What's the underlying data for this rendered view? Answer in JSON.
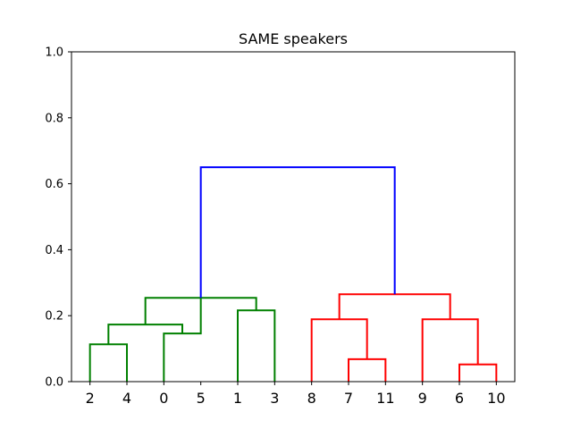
{
  "chart_data": {
    "type": "dendrogram",
    "title": "SAME speakers",
    "xlabel": "",
    "ylabel": "",
    "ylim": [
      0,
      1.0
    ],
    "yticks": [
      "0.0",
      "0.2",
      "0.4",
      "0.6",
      "0.8",
      "1.0"
    ],
    "grid": false,
    "leaves": [
      "2",
      "4",
      "0",
      "5",
      "1",
      "3",
      "8",
      "7",
      "11",
      "9",
      "6",
      "10"
    ],
    "colors": {
      "green": "#008000",
      "red": "#ff0000",
      "blue": "#0000ff"
    },
    "links": [
      {
        "left": 0,
        "right": 1,
        "height": 0.113,
        "color": "green"
      },
      {
        "left": 2,
        "right": 3,
        "height": 0.146,
        "color": "green"
      },
      {
        "left": 4,
        "right": 5,
        "height": 0.216,
        "color": "green"
      },
      {
        "left": 0.5,
        "right": 2.5,
        "height": 0.173,
        "color": "green"
      },
      {
        "left": 1.5,
        "right": 4.5,
        "height": 0.254,
        "color": "green"
      },
      {
        "left": 7,
        "right": 8,
        "height": 0.068,
        "color": "red"
      },
      {
        "left": 10,
        "right": 11,
        "height": 0.052,
        "color": "red"
      },
      {
        "left": 6,
        "right": 7.5,
        "height": 0.189,
        "color": "red"
      },
      {
        "left": 9,
        "right": 10.5,
        "height": 0.189,
        "color": "red"
      },
      {
        "left": 6.75,
        "right": 9.75,
        "height": 0.265,
        "color": "red"
      },
      {
        "left": 3,
        "right": 8.25,
        "height": 0.65,
        "color": "blue"
      }
    ],
    "branch_heights": {
      "0": 0,
      "1": 0,
      "2": 0,
      "3": 0.254,
      "4": 0,
      "5": 0,
      "6": 0,
      "7": 0,
      "8": 0,
      "9": 0,
      "10": 0,
      "11": 0,
      "0.5": 0.113,
      "2.5": 0.146,
      "4.5": 0.216,
      "1.5": 0.173,
      "7.5": 0.068,
      "10.5": 0.052,
      "6.75": 0.189,
      "9.75": 0.189,
      "8.25": 0.265
    }
  }
}
